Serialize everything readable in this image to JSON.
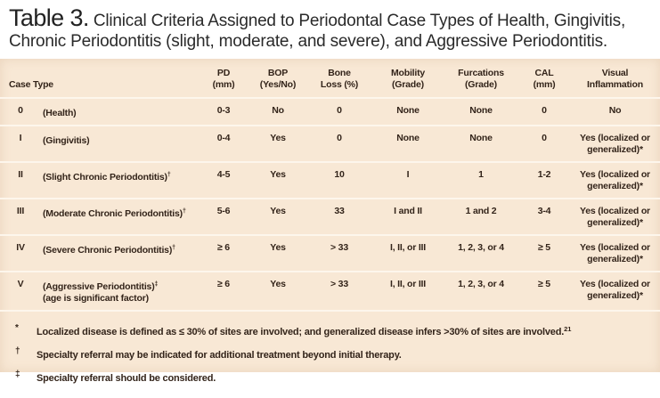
{
  "title": {
    "label": "Table 3.",
    "text": " Clinical Criteria Assigned to Periodontal Case Types of Health, Gingivitis, Chronic Periodontitis (slight, moderate, and severe), and Aggressive Periodontitis."
  },
  "table": {
    "columns": [
      {
        "line1": "",
        "line2": "Case Type"
      },
      {
        "line1": "PD",
        "line2": "(mm)"
      },
      {
        "line1": "BOP",
        "line2": "(Yes/No)"
      },
      {
        "line1": "Bone",
        "line2": "Loss (%)"
      },
      {
        "line1": "Mobility",
        "line2": "(Grade)"
      },
      {
        "line1": "Furcations",
        "line2": "(Grade)"
      },
      {
        "line1": "CAL",
        "line2": "(mm)"
      },
      {
        "line1": "Visual",
        "line2": "Inflammation"
      }
    ],
    "rows": [
      {
        "numeral": "0",
        "label": "(Health)",
        "sup": "",
        "label2": "",
        "pd": "0-3",
        "bop": "No",
        "bone": "0",
        "mobility": "None",
        "furcations": "None",
        "cal": "0",
        "visual": "No"
      },
      {
        "numeral": "I",
        "label": "(Gingivitis)",
        "sup": "",
        "label2": "",
        "pd": "0-4",
        "bop": "Yes",
        "bone": "0",
        "mobility": "None",
        "furcations": "None",
        "cal": "0",
        "visual": "Yes (localized or generalized)*"
      },
      {
        "numeral": "II",
        "label": "(Slight Chronic Periodontitis)",
        "sup": "†",
        "label2": "",
        "pd": "4-5",
        "bop": "Yes",
        "bone": "10",
        "mobility": "I",
        "furcations": "1",
        "cal": "1-2",
        "visual": "Yes (localized or generalized)*"
      },
      {
        "numeral": "III",
        "label": "(Moderate Chronic Periodontitis)",
        "sup": "†",
        "label2": "",
        "pd": "5-6",
        "bop": "Yes",
        "bone": "33",
        "mobility": "I and II",
        "furcations": "1 and 2",
        "cal": "3-4",
        "visual": "Yes (localized or generalized)*"
      },
      {
        "numeral": "IV",
        "label": "(Severe Chronic Periodontitis)",
        "sup": "†",
        "label2": "",
        "pd": "≥ 6",
        "bop": "Yes",
        "bone": "> 33",
        "mobility": "I, II, or III",
        "furcations": "1, 2, 3, or 4",
        "cal": "≥ 5",
        "visual": "Yes (localized or generalized)*"
      },
      {
        "numeral": "V",
        "label": "(Aggressive Periodontitis)",
        "sup": "‡",
        "label2": "(age is significant factor)",
        "pd": "≥ 6",
        "bop": "Yes",
        "bone": "> 33",
        "mobility": "I, II, or III",
        "furcations": "1, 2, 3, or 4",
        "cal": "≥ 5",
        "visual": "Yes (localized or generalized)*"
      }
    ]
  },
  "footnotes": [
    {
      "marker": "*",
      "text": "Localized disease is defined as ≤ 30% of sites are involved; and generalized disease infers >30% of sites are involved.",
      "ref": "21"
    },
    {
      "marker": "†",
      "text": "Specialty referral may be indicated for additional treatment beyond initial therapy.",
      "ref": ""
    },
    {
      "marker": "‡",
      "text": "Specialty referral should be considered.",
      "ref": ""
    }
  ],
  "colors": {
    "panel_background": "#f8e8d5",
    "separator": "#fdf6ec",
    "body_text": "#33241a",
    "title_text": "#2a2a2a",
    "page_background": "#ffffff"
  }
}
